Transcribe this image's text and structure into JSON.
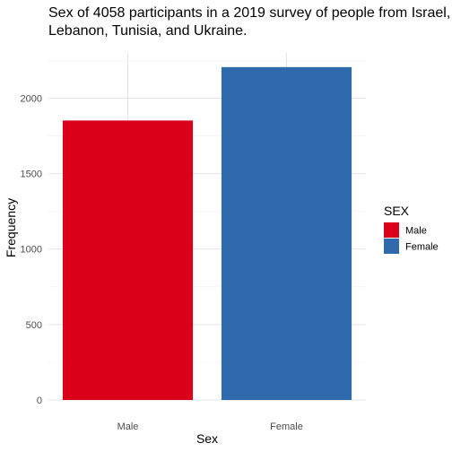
{
  "chart_data": {
    "type": "bar",
    "title_lines": [
      "Sex of 4058 participants in a 2019 survey of people from Israel,",
      "Lebanon, Tunisia, and Ukraine."
    ],
    "xlabel": "Sex",
    "ylabel": "Frequency",
    "categories": [
      "Male",
      "Female"
    ],
    "values": [
      1852,
      2206
    ],
    "colors": [
      "#da001a",
      "#2f6aac"
    ],
    "ylim": [
      0,
      2300
    ],
    "yticks": [
      0,
      500,
      1000,
      1500,
      2000
    ],
    "grid": true,
    "legend": {
      "title": "SEX",
      "position": "right",
      "entries": [
        {
          "label": "Male",
          "color": "#da001a"
        },
        {
          "label": "Female",
          "color": "#2f6aac"
        }
      ]
    }
  }
}
